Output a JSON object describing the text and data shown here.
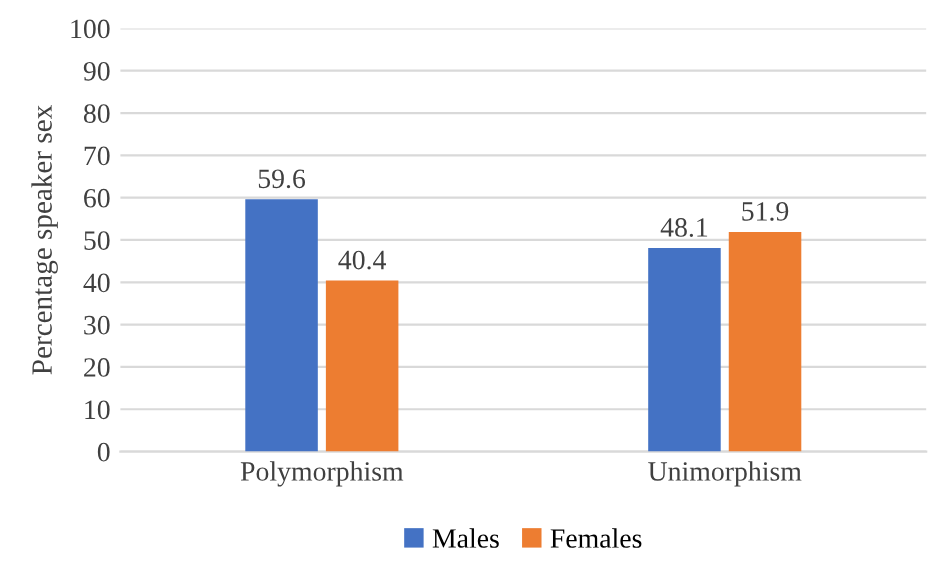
{
  "chart_data": {
    "type": "bar",
    "ylabel": "Percentage speaker sex",
    "categories": [
      "Polymorphism",
      "Unimorphism"
    ],
    "series": [
      {
        "name": "Males",
        "color": "#4472c4",
        "values": [
          59.6,
          48.1
        ]
      },
      {
        "name": "Females",
        "color": "#ed7d31",
        "values": [
          40.4,
          51.9
        ]
      }
    ],
    "ylim": [
      0,
      100
    ],
    "yticks": [
      0,
      10,
      20,
      30,
      40,
      50,
      60,
      70,
      80,
      90,
      100
    ],
    "grid": "y",
    "legend": "bottom",
    "data_labels": true
  }
}
